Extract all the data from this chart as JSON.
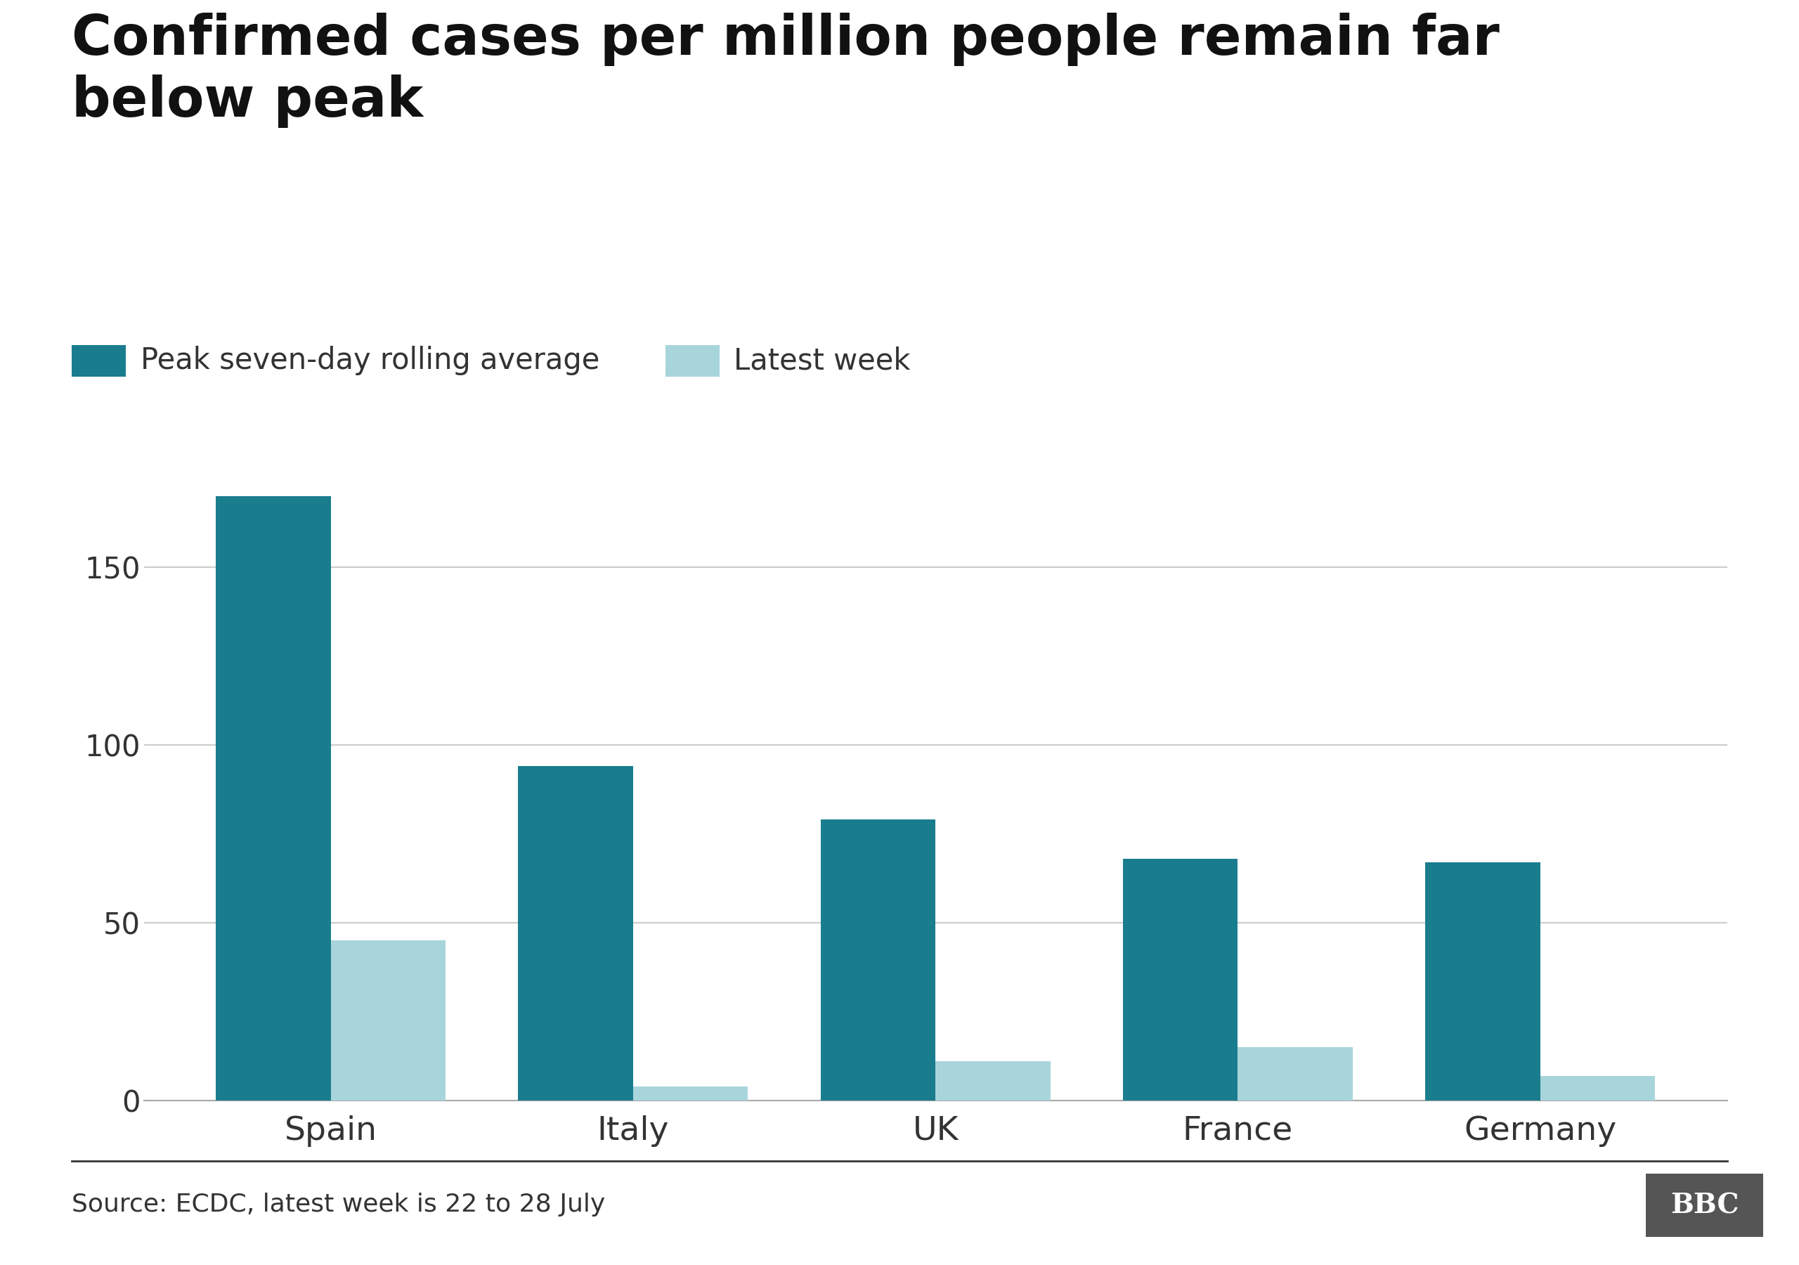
{
  "title": "Confirmed cases per million people remain far\nbelow peak",
  "categories": [
    "Spain",
    "Italy",
    "UK",
    "France",
    "Germany"
  ],
  "peak_values": [
    170,
    94,
    79,
    68,
    67
  ],
  "latest_values": [
    45,
    4,
    11,
    15,
    7
  ],
  "peak_color": "#1a7d8e",
  "latest_color": "#a8d5dc",
  "background_color": "#ffffff",
  "ylim": [
    0,
    185
  ],
  "yticks": [
    0,
    50,
    100,
    150
  ],
  "legend_peak": "Peak seven-day rolling average",
  "legend_latest": "Latest week",
  "source_text": "Source: ECDC, latest week is 22 to 28 July",
  "bbc_text": "BBC",
  "title_fontsize": 56,
  "legend_fontsize": 30,
  "tick_fontsize": 30,
  "xtick_fontsize": 34,
  "source_fontsize": 26,
  "bar_width": 0.38,
  "grid_color": "#cccccc"
}
